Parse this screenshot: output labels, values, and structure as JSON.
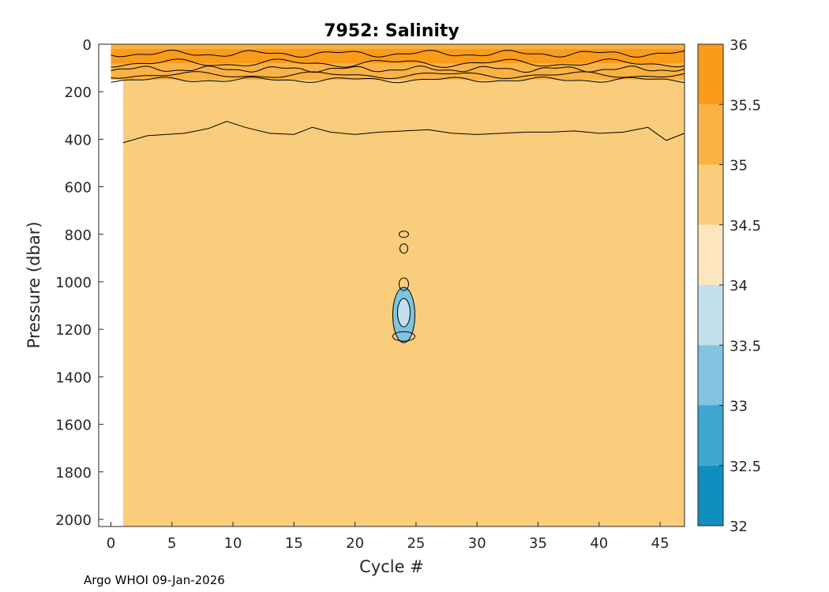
{
  "chart_data": {
    "type": "heatmap",
    "title": "7952:  Salinity",
    "xlabel": "Cycle #",
    "ylabel": "Pressure (dbar)",
    "xlim": [
      -1,
      47
    ],
    "ylim": [
      2030,
      0
    ],
    "y_reversed": true,
    "xticks": [
      0,
      5,
      10,
      15,
      20,
      25,
      30,
      35,
      40,
      45
    ],
    "yticks": [
      0,
      200,
      400,
      600,
      800,
      1000,
      1200,
      1400,
      1600,
      1800,
      2000
    ],
    "colorbar": {
      "range": [
        32,
        36
      ],
      "ticks": [
        32,
        32.5,
        33,
        33.5,
        34,
        34.5,
        35,
        35.5,
        36
      ],
      "levels": [
        {
          "from": 32.0,
          "to": 32.5,
          "color": "#0f8fbd"
        },
        {
          "from": 32.5,
          "to": 33.0,
          "color": "#3ea6cf"
        },
        {
          "from": 33.0,
          "to": 33.5,
          "color": "#81c3e0"
        },
        {
          "from": 33.5,
          "to": 34.0,
          "color": "#c1e0ec"
        },
        {
          "from": 34.0,
          "to": 34.5,
          "color": "#fde6bd"
        },
        {
          "from": 34.5,
          "to": 35.0,
          "color": "#f9cd7c"
        },
        {
          "from": 35.0,
          "to": 35.5,
          "color": "#f9b243"
        },
        {
          "from": 35.5,
          "to": 36.0,
          "color": "#fa9c1a"
        }
      ]
    },
    "bands": [
      {
        "salinity_range": [
          34.5,
          35.0
        ],
        "pressure_top": 0,
        "pressure_bottom": 2030,
        "cycles": [
          1,
          47
        ]
      },
      {
        "salinity_range": [
          35.0,
          35.5
        ],
        "pressure_top": 0,
        "pressure_bottom": 150,
        "cycles": [
          0,
          47
        ]
      },
      {
        "salinity_range": [
          35.5,
          36.0
        ],
        "pressure_top": 20,
        "pressure_bottom": 80,
        "cycles": [
          0,
          47
        ]
      }
    ],
    "contour_35_depth": [
      {
        "x": 1,
        "p": 415
      },
      {
        "x": 3,
        "p": 385
      },
      {
        "x": 6,
        "p": 375
      },
      {
        "x": 8,
        "p": 355
      },
      {
        "x": 9.5,
        "p": 325
      },
      {
        "x": 11,
        "p": 350
      },
      {
        "x": 13,
        "p": 375
      },
      {
        "x": 15,
        "p": 380
      },
      {
        "x": 16.5,
        "p": 350
      },
      {
        "x": 18,
        "p": 370
      },
      {
        "x": 20,
        "p": 380
      },
      {
        "x": 22,
        "p": 370
      },
      {
        "x": 24,
        "p": 365
      },
      {
        "x": 26,
        "p": 360
      },
      {
        "x": 28,
        "p": 375
      },
      {
        "x": 30,
        "p": 380
      },
      {
        "x": 32,
        "p": 375
      },
      {
        "x": 34,
        "p": 370
      },
      {
        "x": 36,
        "p": 370
      },
      {
        "x": 38,
        "p": 365
      },
      {
        "x": 40,
        "p": 375
      },
      {
        "x": 42,
        "p": 370
      },
      {
        "x": 44,
        "p": 350
      },
      {
        "x": 45.5,
        "p": 405
      },
      {
        "x": 47,
        "p": 375
      }
    ],
    "anomaly": {
      "cycle": 24,
      "pressure_range": [
        780,
        1270
      ],
      "min_salinity": 33.0
    }
  },
  "footer": "Argo WHOI 09-Jan-2026"
}
